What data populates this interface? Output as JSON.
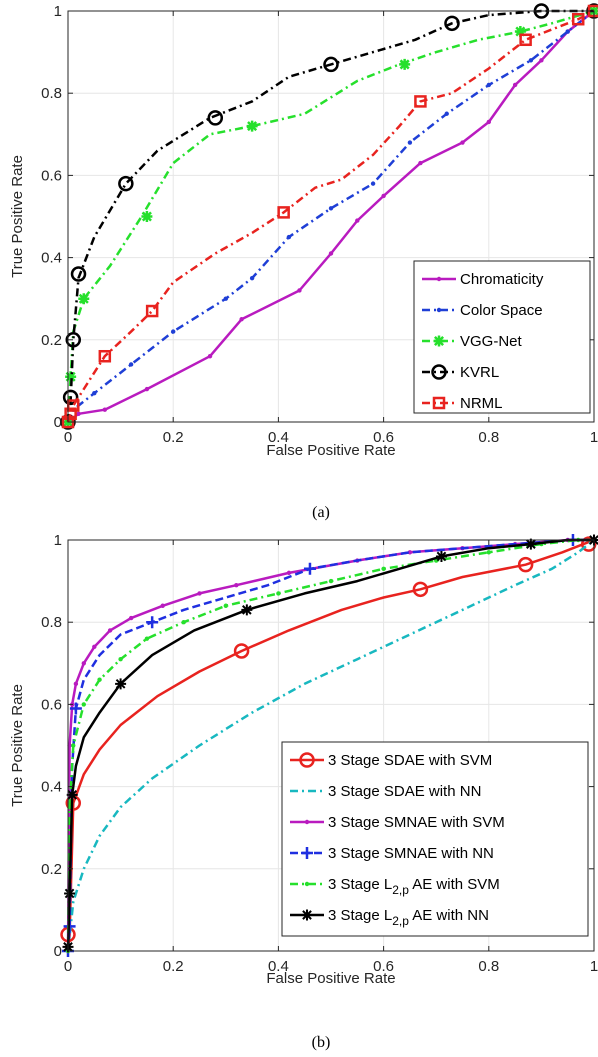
{
  "chart_data": [
    {
      "type": "line",
      "caption": "(a)",
      "xlabel": "False Positive Rate",
      "ylabel": "True Positive Rate",
      "xlim": [
        0,
        1
      ],
      "ylim": [
        0,
        1
      ],
      "x_ticks": [
        "0",
        "0.2",
        "0.4",
        "0.6",
        "0.8",
        "1"
      ],
      "y_ticks": [
        "0",
        "0.2",
        "0.4",
        "0.6",
        "0.8",
        "1"
      ],
      "grid": true,
      "legend_position": "bottom-right",
      "series": [
        {
          "name": "Chromaticity",
          "color": "#b91bbf",
          "dash": "",
          "marker": "dot",
          "x": [
            0,
            0.02,
            0.07,
            0.15,
            0.27,
            0.33,
            0.44,
            0.5,
            0.55,
            0.6,
            0.67,
            0.75,
            0.8,
            0.85,
            0.9,
            0.95,
            1.0
          ],
          "y": [
            0,
            0.02,
            0.03,
            0.08,
            0.16,
            0.25,
            0.32,
            0.41,
            0.49,
            0.55,
            0.63,
            0.68,
            0.73,
            0.82,
            0.88,
            0.95,
            1.0
          ],
          "markers_x": [],
          "markers_y": []
        },
        {
          "name": "Color Space",
          "color": "#1f3fd6",
          "dash": "8,4,2,4",
          "marker": "dot",
          "x": [
            0,
            0.01,
            0.05,
            0.12,
            0.2,
            0.3,
            0.35,
            0.42,
            0.5,
            0.58,
            0.65,
            0.72,
            0.8,
            0.88,
            0.95,
            1.0
          ],
          "y": [
            0,
            0.03,
            0.07,
            0.14,
            0.22,
            0.3,
            0.35,
            0.45,
            0.52,
            0.58,
            0.68,
            0.75,
            0.82,
            0.88,
            0.95,
            1.0
          ],
          "markers_x": [],
          "markers_y": []
        },
        {
          "name": "VGG-Net",
          "color": "#26e02c",
          "dash": "8,4,2,4",
          "marker": "star",
          "x": [
            0,
            0.005,
            0.01,
            0.03,
            0.08,
            0.14,
            0.2,
            0.27,
            0.35,
            0.45,
            0.55,
            0.63,
            0.7,
            0.78,
            0.86,
            0.92,
            1.0
          ],
          "y": [
            0,
            0.11,
            0.22,
            0.3,
            0.38,
            0.5,
            0.63,
            0.7,
            0.72,
            0.75,
            0.83,
            0.87,
            0.9,
            0.93,
            0.95,
            0.97,
            1.0
          ],
          "markers_x": [
            0,
            0.005,
            0.03,
            0.15,
            0.35,
            0.64,
            0.86,
            1.0
          ],
          "markers_y": [
            0,
            0.11,
            0.3,
            0.5,
            0.72,
            0.87,
            0.95,
            1.0
          ]
        },
        {
          "name": "KVRL",
          "color": "#000000",
          "dash": "8,4,2,4",
          "marker": "circle",
          "x": [
            0,
            0.005,
            0.01,
            0.02,
            0.05,
            0.11,
            0.17,
            0.27,
            0.35,
            0.42,
            0.5,
            0.58,
            0.66,
            0.73,
            0.8,
            0.9,
            1.0
          ],
          "y": [
            0,
            0.05,
            0.2,
            0.35,
            0.45,
            0.58,
            0.66,
            0.74,
            0.78,
            0.84,
            0.87,
            0.9,
            0.93,
            0.97,
            0.99,
            1.0,
            1.0
          ],
          "markers_x": [
            0,
            0.005,
            0.01,
            0.02,
            0.11,
            0.28,
            0.5,
            0.73,
            0.9,
            1.0
          ],
          "markers_y": [
            0,
            0.06,
            0.2,
            0.36,
            0.58,
            0.74,
            0.87,
            0.97,
            1.0,
            1.0
          ]
        },
        {
          "name": "NRML",
          "color": "#e8231f",
          "dash": "8,4,2,4",
          "marker": "square",
          "x": [
            0,
            0.005,
            0.01,
            0.04,
            0.07,
            0.12,
            0.16,
            0.2,
            0.28,
            0.35,
            0.41,
            0.47,
            0.52,
            0.58,
            0.63,
            0.67,
            0.73,
            0.8,
            0.87,
            0.93,
            0.97,
            1.0
          ],
          "y": [
            0,
            0.02,
            0.04,
            0.1,
            0.16,
            0.22,
            0.27,
            0.34,
            0.41,
            0.46,
            0.51,
            0.57,
            0.59,
            0.65,
            0.72,
            0.78,
            0.8,
            0.86,
            0.93,
            0.96,
            0.98,
            1.0
          ],
          "markers_x": [
            0,
            0.005,
            0.01,
            0.07,
            0.16,
            0.41,
            0.67,
            0.87,
            0.97,
            1.0
          ],
          "markers_y": [
            0,
            0.02,
            0.04,
            0.16,
            0.27,
            0.51,
            0.78,
            0.93,
            0.98,
            1.0
          ]
        }
      ]
    },
    {
      "type": "line",
      "caption": "(b)",
      "xlabel": "False Positive Rate",
      "ylabel": "True Positive Rate",
      "xlim": [
        0,
        1
      ],
      "ylim": [
        0,
        1
      ],
      "x_ticks": [
        "0",
        "0.2",
        "0.4",
        "0.6",
        "0.8",
        "1"
      ],
      "y_ticks": [
        "0",
        "0.2",
        "0.4",
        "0.6",
        "0.8",
        "1"
      ],
      "grid": true,
      "legend_position": "bottom-right",
      "series": [
        {
          "name": "3 Stage SDAE with SVM",
          "sub": "",
          "suffix": "",
          "color": "#e8231f",
          "dash": "",
          "marker": "circle",
          "x": [
            0,
            0.003,
            0.01,
            0.03,
            0.06,
            0.1,
            0.17,
            0.25,
            0.33,
            0.42,
            0.52,
            0.6,
            0.67,
            0.75,
            0.87,
            0.94,
            0.98,
            1.0
          ],
          "y": [
            0,
            0.04,
            0.36,
            0.43,
            0.49,
            0.55,
            0.62,
            0.68,
            0.73,
            0.78,
            0.83,
            0.86,
            0.88,
            0.91,
            0.94,
            0.97,
            0.99,
            1.0
          ],
          "markers_x": [
            0,
            0.01,
            0.33,
            0.67,
            0.87,
            0.99
          ],
          "markers_y": [
            0.04,
            0.36,
            0.73,
            0.88,
            0.94,
            0.99
          ]
        },
        {
          "name": "3 Stage SDAE with NN",
          "sub": "",
          "suffix": "",
          "color": "#18b8c0",
          "dash": "8,4,2,4",
          "marker": "",
          "x": [
            0,
            0.01,
            0.03,
            0.06,
            0.1,
            0.16,
            0.25,
            0.35,
            0.45,
            0.55,
            0.65,
            0.75,
            0.85,
            0.92,
            0.97,
            1.0
          ],
          "y": [
            0,
            0.12,
            0.2,
            0.28,
            0.35,
            0.42,
            0.5,
            0.58,
            0.65,
            0.71,
            0.77,
            0.83,
            0.89,
            0.93,
            0.97,
            1.0
          ],
          "markers_x": [],
          "markers_y": []
        },
        {
          "name": "3 Stage SMNAE with SVM",
          "sub": "",
          "suffix": "",
          "color": "#b91bbf",
          "dash": "",
          "marker": "dot",
          "x": [
            0,
            0.003,
            0.008,
            0.015,
            0.03,
            0.05,
            0.08,
            0.12,
            0.18,
            0.25,
            0.32,
            0.42,
            0.55,
            0.65,
            0.75,
            0.85,
            0.95,
            1.0
          ],
          "y": [
            0,
            0.5,
            0.6,
            0.65,
            0.7,
            0.74,
            0.78,
            0.81,
            0.84,
            0.87,
            0.89,
            0.92,
            0.95,
            0.97,
            0.98,
            0.99,
            1.0,
            1.0
          ],
          "markers_x": [],
          "markers_y": []
        },
        {
          "name": "3 Stage SMNAE with NN",
          "sub": "",
          "suffix": "",
          "color": "#1f2fe0",
          "dash": "8,4",
          "marker": "plus",
          "x": [
            0,
            0.003,
            0.008,
            0.015,
            0.03,
            0.06,
            0.1,
            0.16,
            0.22,
            0.3,
            0.38,
            0.46,
            0.55,
            0.65,
            0.75,
            0.85,
            0.96,
            1.0
          ],
          "y": [
            0,
            0.06,
            0.45,
            0.59,
            0.66,
            0.72,
            0.77,
            0.8,
            0.83,
            0.86,
            0.89,
            0.93,
            0.95,
            0.97,
            0.98,
            0.99,
            1.0,
            1.0
          ],
          "markers_x": [
            0,
            0.003,
            0.015,
            0.16,
            0.46,
            0.96
          ],
          "markers_y": [
            0,
            0.06,
            0.59,
            0.8,
            0.93,
            1.0
          ]
        },
        {
          "name": "3 Stage L",
          "sub": "2,p",
          "suffix": " AE with SVM",
          "color": "#26e02c",
          "dash": "8,4,2,4",
          "marker": "dot",
          "x": [
            0,
            0.003,
            0.01,
            0.03,
            0.06,
            0.1,
            0.15,
            0.22,
            0.3,
            0.4,
            0.5,
            0.6,
            0.7,
            0.8,
            0.9,
            0.97,
            1.0
          ],
          "y": [
            0,
            0.35,
            0.5,
            0.6,
            0.66,
            0.71,
            0.76,
            0.8,
            0.84,
            0.87,
            0.9,
            0.93,
            0.95,
            0.97,
            0.99,
            1.0,
            1.0
          ],
          "markers_x": [],
          "markers_y": []
        },
        {
          "name": "3 Stage L",
          "sub": "2,p",
          "suffix": " AE with NN",
          "color": "#000000",
          "dash": "",
          "marker": "asterisk",
          "x": [
            0,
            0.003,
            0.008,
            0.015,
            0.03,
            0.06,
            0.1,
            0.16,
            0.24,
            0.34,
            0.45,
            0.55,
            0.63,
            0.71,
            0.8,
            0.88,
            0.95,
            1.0
          ],
          "y": [
            0,
            0.14,
            0.38,
            0.45,
            0.52,
            0.58,
            0.65,
            0.72,
            0.78,
            0.83,
            0.87,
            0.9,
            0.93,
            0.96,
            0.98,
            0.99,
            1.0,
            1.0
          ],
          "markers_x": [
            0,
            0.003,
            0.008,
            0.1,
            0.34,
            0.71,
            0.88,
            1.0
          ],
          "markers_y": [
            0.01,
            0.14,
            0.38,
            0.65,
            0.83,
            0.96,
            0.99,
            1.0
          ]
        }
      ]
    }
  ]
}
